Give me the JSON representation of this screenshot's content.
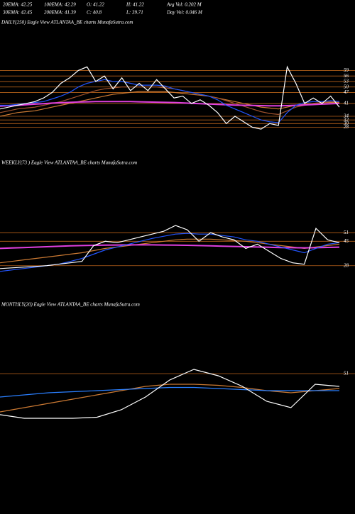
{
  "header": {
    "row1": [
      "20EMA: 42.25",
      "100EMA: 42.29",
      "O: 41.22",
      "H: 41.22",
      "Avg Vol: 0.202  M"
    ],
    "row2": [
      "30EMA: 42.45",
      "200EMA: 41.39",
      "C: 40.8",
      "L: 39.71",
      "Day Vol: 0.046  M"
    ]
  },
  "chart_data": [
    {
      "type": "line",
      "title": "DAILY(250) Eagle  View  ATLANTAA_BE charts MunafaSutra.com",
      "ylim": [
        22,
        82
      ],
      "yticks": [
        59,
        56,
        53,
        50,
        47,
        41,
        34,
        32,
        30,
        28
      ],
      "grid": true,
      "grid_color": "#b8621a",
      "series": [
        {
          "color": "#cc7a33",
          "values": [
            34,
            35,
            36,
            36.5,
            37,
            38,
            39,
            40,
            41,
            42,
            43,
            44,
            45,
            46,
            46.5,
            47,
            47.5,
            47.5,
            47.5,
            47.5,
            47,
            46.5,
            46,
            45.5,
            45,
            44,
            43,
            42,
            41,
            40,
            39,
            38.5,
            38,
            39,
            40,
            40.5,
            41,
            41.5,
            41.5,
            41.5
          ]
        },
        {
          "color": "#a0522d",
          "values": [
            36,
            37,
            38,
            38.5,
            39,
            40,
            41,
            42,
            43.5,
            45,
            46.5,
            48,
            49,
            49.5,
            50,
            50,
            50,
            50,
            50,
            49.5,
            49,
            48,
            47,
            46,
            45,
            44,
            42.5,
            41,
            39.5,
            38,
            36.5,
            35.5,
            35,
            37,
            39,
            40,
            41,
            41.5,
            42,
            42
          ]
        },
        {
          "color": "#e040e0",
          "values": [
            39.5,
            39.8,
            40,
            40.3,
            40.6,
            40.9,
            41.2,
            41.4,
            41.6,
            41.8,
            41.9,
            42,
            42,
            42,
            42,
            42,
            41.9,
            41.8,
            41.7,
            41.6,
            41.5,
            41.3,
            41.1,
            40.9,
            40.7,
            40.5,
            40.3,
            40.1,
            40,
            39.9,
            39.8,
            39.7,
            39.7,
            39.8,
            40,
            40.2,
            40.4,
            40.6,
            40.8,
            41
          ]
        },
        {
          "color": "#2255ff",
          "values": [
            40,
            40,
            40.5,
            41,
            41.5,
            42,
            43.5,
            45,
            47,
            50,
            52,
            53,
            54,
            53,
            53,
            52,
            51,
            51,
            51,
            50.5,
            49,
            48,
            47,
            46,
            45,
            43,
            40,
            38,
            36,
            34,
            32,
            31,
            30.5,
            36,
            40,
            41.5,
            42,
            42,
            42.5,
            42
          ]
        },
        {
          "color": "#ffffff",
          "values": [
            38,
            39,
            40,
            41,
            42,
            44,
            47,
            52,
            55,
            59,
            61,
            53,
            56,
            49,
            55,
            48,
            52,
            48,
            54,
            49,
            44,
            45,
            41,
            43,
            40,
            36,
            30,
            34,
            31,
            28,
            27,
            30,
            29,
            61,
            52,
            41,
            44,
            41,
            45,
            39
          ]
        }
      ]
    },
    {
      "type": "line",
      "title": "WEEKLY(73                ) Eagle  View  ATLANTAA_BE charts MunafaSutra.com",
      "ylim": [
        18,
        97
      ],
      "yticks": [
        51,
        45,
        28
      ],
      "grid": true,
      "grid_color": "#b8621a",
      "series": [
        {
          "color": "#cc7a33",
          "values": [
            30,
            31,
            32,
            33,
            34,
            35,
            36,
            37,
            38.5,
            40,
            41,
            42,
            43,
            44,
            45,
            46,
            46.5,
            46.5,
            46.5,
            46,
            45.5,
            45,
            44,
            43,
            42,
            41,
            40,
            41,
            42,
            43
          ]
        },
        {
          "color": "#e040e0",
          "values": [
            40,
            40.3,
            40.6,
            40.9,
            41.2,
            41.5,
            41.8,
            42,
            42.2,
            42.3,
            42.4,
            42.5,
            42.5,
            42.5,
            42.4,
            42.3,
            42.2,
            42,
            41.8,
            41.6,
            41.4,
            41.2,
            41,
            40.8,
            40.6,
            40.5,
            40.4,
            40.5,
            40.7,
            40.9
          ]
        },
        {
          "color": "#2255ff",
          "values": [
            24,
            25,
            26,
            27,
            28,
            29,
            31,
            33,
            36,
            39,
            41,
            43,
            45,
            47,
            48.5,
            50,
            50.5,
            50,
            50,
            49,
            48,
            46,
            45,
            43,
            41,
            39,
            37,
            40,
            43,
            44
          ]
        },
        {
          "color": "#ffffff",
          "values": [
            26,
            26.5,
            27,
            27.5,
            28,
            29,
            30,
            31,
            42,
            45,
            44,
            46,
            48,
            50,
            52,
            56,
            53,
            45,
            51,
            48,
            46,
            40,
            43,
            38,
            33,
            30,
            29,
            54,
            46,
            44
          ]
        }
      ]
    },
    {
      "type": "line",
      "title": "MONTHLY(20) Eagle  View  ATLANTAA_BE charts MunafaSutra.com",
      "ylim": [
        20,
        80
      ],
      "yticks": [
        51
      ],
      "grid": true,
      "grid_color": "#b8621a",
      "series": [
        {
          "color": "#cc7a33",
          "values": [
            33,
            35,
            37,
            39,
            41,
            43,
            45,
            46,
            46,
            45.5,
            44.5,
            43,
            42,
            43,
            44
          ]
        },
        {
          "color": "#2a7fff",
          "values": [
            40,
            41,
            42,
            42.5,
            43,
            43.5,
            44,
            44.5,
            44.5,
            44,
            43.5,
            43,
            43,
            43,
            43
          ]
        },
        {
          "color": "#ffffff",
          "values": [
            31.7,
            30,
            30,
            30,
            30.5,
            34,
            40,
            48,
            53,
            50,
            45,
            38,
            35,
            46,
            45
          ]
        }
      ]
    }
  ]
}
